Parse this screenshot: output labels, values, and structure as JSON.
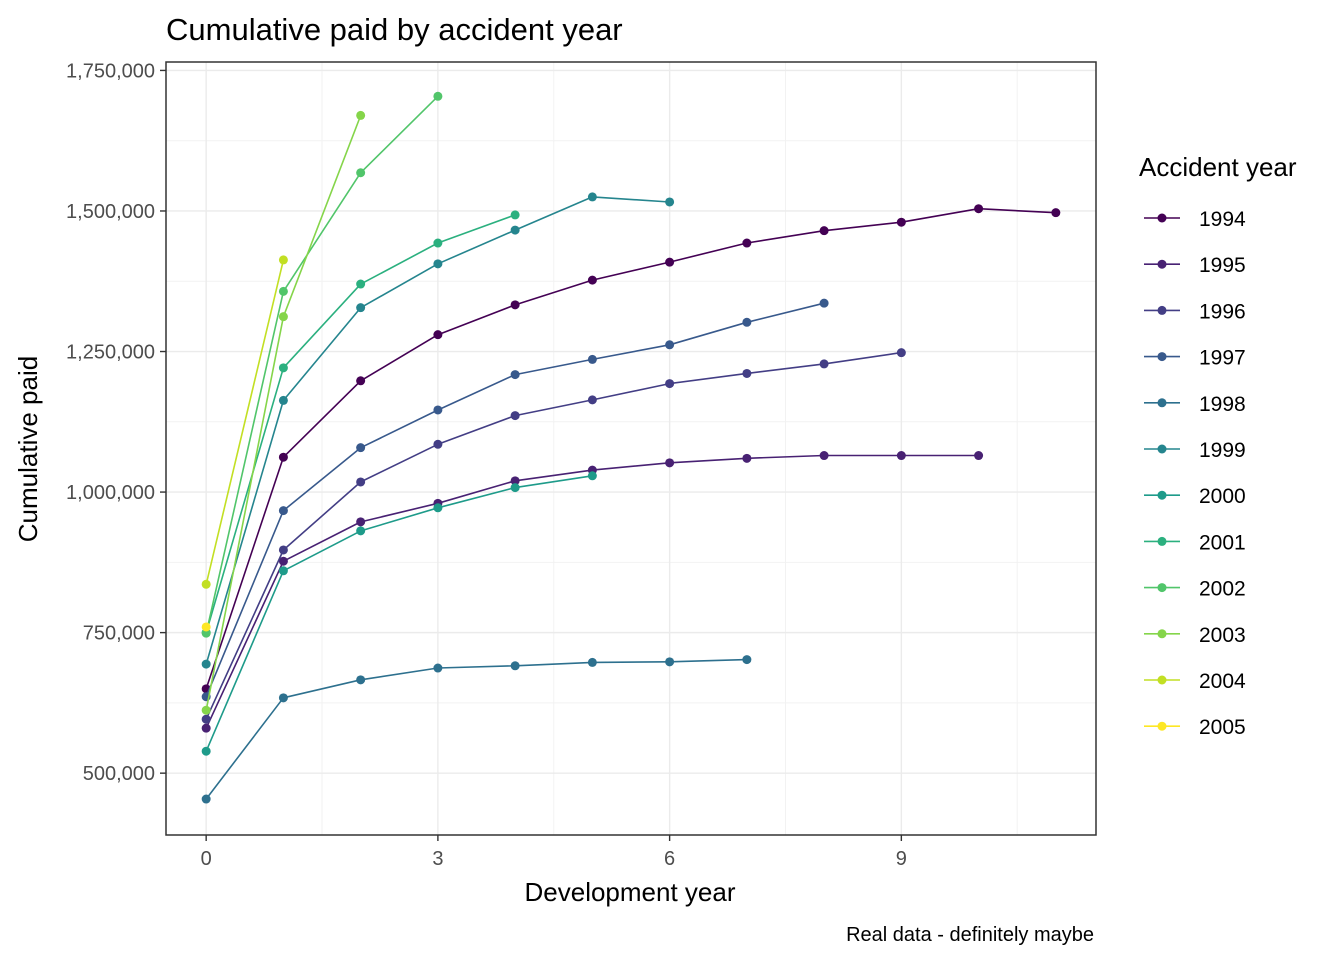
{
  "chart_data": {
    "type": "line",
    "title": "Cumulative paid by accident year",
    "xlabel": "Development year",
    "ylabel": "Cumulative paid",
    "caption": "Real data - definitely maybe",
    "legend_title": "Accident year",
    "legend_position": "right",
    "grid": true,
    "xlim": [
      -0.52,
      11.52
    ],
    "ylim": [
      390000,
      1765000
    ],
    "x_ticks": [
      0,
      3,
      6,
      9
    ],
    "x_tick_labels": [
      "0",
      "3",
      "6",
      "9"
    ],
    "y_ticks": [
      500000,
      750000,
      1000000,
      1250000,
      1500000,
      1750000
    ],
    "y_tick_labels": [
      "500,000",
      "750,000",
      "1,000,000",
      "1,250,000",
      "1,500,000",
      "1,750,000"
    ],
    "series": [
      {
        "name": "1994",
        "color": "#440154",
        "x": [
          0,
          1,
          2,
          3,
          4,
          5,
          6,
          7,
          8,
          9,
          10,
          11
        ],
        "y": [
          650000,
          1062000,
          1198000,
          1280000,
          1333000,
          1377000,
          1409000,
          1443000,
          1465000,
          1480000,
          1504000,
          1497000
        ]
      },
      {
        "name": "1995",
        "color": "#482173",
        "x": [
          0,
          1,
          2,
          3,
          4,
          5,
          6,
          7,
          8,
          9,
          10
        ],
        "y": [
          580000,
          877000,
          947000,
          980000,
          1020000,
          1039000,
          1052000,
          1060000,
          1065000,
          1065000,
          1065000
        ]
      },
      {
        "name": "1996",
        "color": "#433E85",
        "x": [
          0,
          1,
          2,
          3,
          4,
          5,
          6,
          7,
          8,
          9
        ],
        "y": [
          596000,
          897000,
          1018000,
          1085000,
          1136000,
          1164000,
          1193000,
          1211000,
          1228000,
          1248000
        ]
      },
      {
        "name": "1997",
        "color": "#38598C",
        "x": [
          0,
          1,
          2,
          3,
          4,
          5,
          6,
          7,
          8
        ],
        "y": [
          636000,
          967000,
          1079000,
          1146000,
          1209000,
          1236000,
          1262000,
          1302000,
          1336000
        ]
      },
      {
        "name": "1998",
        "color": "#2D708E",
        "x": [
          0,
          1,
          2,
          3,
          4,
          5,
          6,
          7
        ],
        "y": [
          454000,
          634000,
          666000,
          687000,
          691000,
          697000,
          698000,
          702000
        ]
      },
      {
        "name": "1999",
        "color": "#25858E",
        "x": [
          0,
          1,
          2,
          3,
          4,
          5,
          6
        ],
        "y": [
          694000,
          1163000,
          1328000,
          1406000,
          1466000,
          1525000,
          1516000
        ]
      },
      {
        "name": "2000",
        "color": "#1E9B8A",
        "x": [
          0,
          1,
          2,
          3,
          4,
          5
        ],
        "y": [
          539000,
          860000,
          931000,
          972000,
          1008000,
          1029000
        ]
      },
      {
        "name": "2001",
        "color": "#2BB07F",
        "x": [
          0,
          1,
          2,
          3,
          4
        ],
        "y": [
          750000,
          1221000,
          1370000,
          1443000,
          1493000
        ]
      },
      {
        "name": "2002",
        "color": "#51C56A",
        "x": [
          0,
          1,
          2,
          3
        ],
        "y": [
          749000,
          1357000,
          1568000,
          1704000
        ]
      },
      {
        "name": "2003",
        "color": "#85D54A",
        "x": [
          0,
          1,
          2
        ],
        "y": [
          612000,
          1312000,
          1670000
        ]
      },
      {
        "name": "2004",
        "color": "#C2DF23",
        "x": [
          0,
          1
        ],
        "y": [
          836000,
          1413000
        ]
      },
      {
        "name": "2005",
        "color": "#FDE725",
        "x": [
          0
        ],
        "y": [
          760000
        ]
      }
    ]
  }
}
